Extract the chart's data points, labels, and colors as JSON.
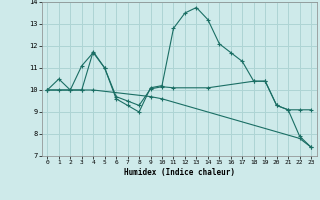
{
  "xlabel": "Humidex (Indice chaleur)",
  "background_color": "#ceeaea",
  "line_color": "#1a6e64",
  "grid_color": "#aed4d4",
  "xlim": [
    -0.5,
    23.5
  ],
  "ylim": [
    7,
    14
  ],
  "xticks": [
    0,
    1,
    2,
    3,
    4,
    5,
    6,
    7,
    8,
    9,
    10,
    11,
    12,
    13,
    14,
    15,
    16,
    17,
    18,
    19,
    20,
    21,
    22,
    23
  ],
  "yticks": [
    7,
    8,
    9,
    10,
    11,
    12,
    13,
    14
  ],
  "line1_x": [
    0,
    1,
    2,
    3,
    4,
    5,
    6,
    7,
    8,
    9,
    10,
    11,
    12,
    13,
    14,
    15,
    16,
    17,
    18,
    19,
    20,
    21,
    22,
    23
  ],
  "line1_y": [
    10.0,
    10.5,
    10.0,
    11.1,
    11.7,
    11.0,
    9.6,
    9.3,
    9.0,
    10.1,
    10.2,
    12.8,
    13.5,
    13.75,
    13.2,
    12.1,
    11.7,
    11.3,
    10.4,
    10.4,
    9.3,
    9.1,
    7.9,
    7.4
  ],
  "line2_x": [
    0,
    2,
    3,
    4,
    5,
    6,
    7,
    8,
    9,
    10,
    11,
    14,
    18,
    19,
    20,
    21,
    22,
    23
  ],
  "line2_y": [
    10.0,
    10.0,
    10.0,
    11.75,
    11.0,
    9.7,
    9.5,
    9.3,
    10.05,
    10.15,
    10.1,
    10.1,
    10.4,
    10.4,
    9.3,
    9.1,
    9.1,
    9.1
  ],
  "line3_x": [
    0,
    1,
    2,
    3,
    4,
    9,
    10,
    22,
    23
  ],
  "line3_y": [
    10.0,
    10.0,
    10.0,
    10.0,
    10.0,
    9.7,
    9.6,
    7.8,
    7.4
  ]
}
